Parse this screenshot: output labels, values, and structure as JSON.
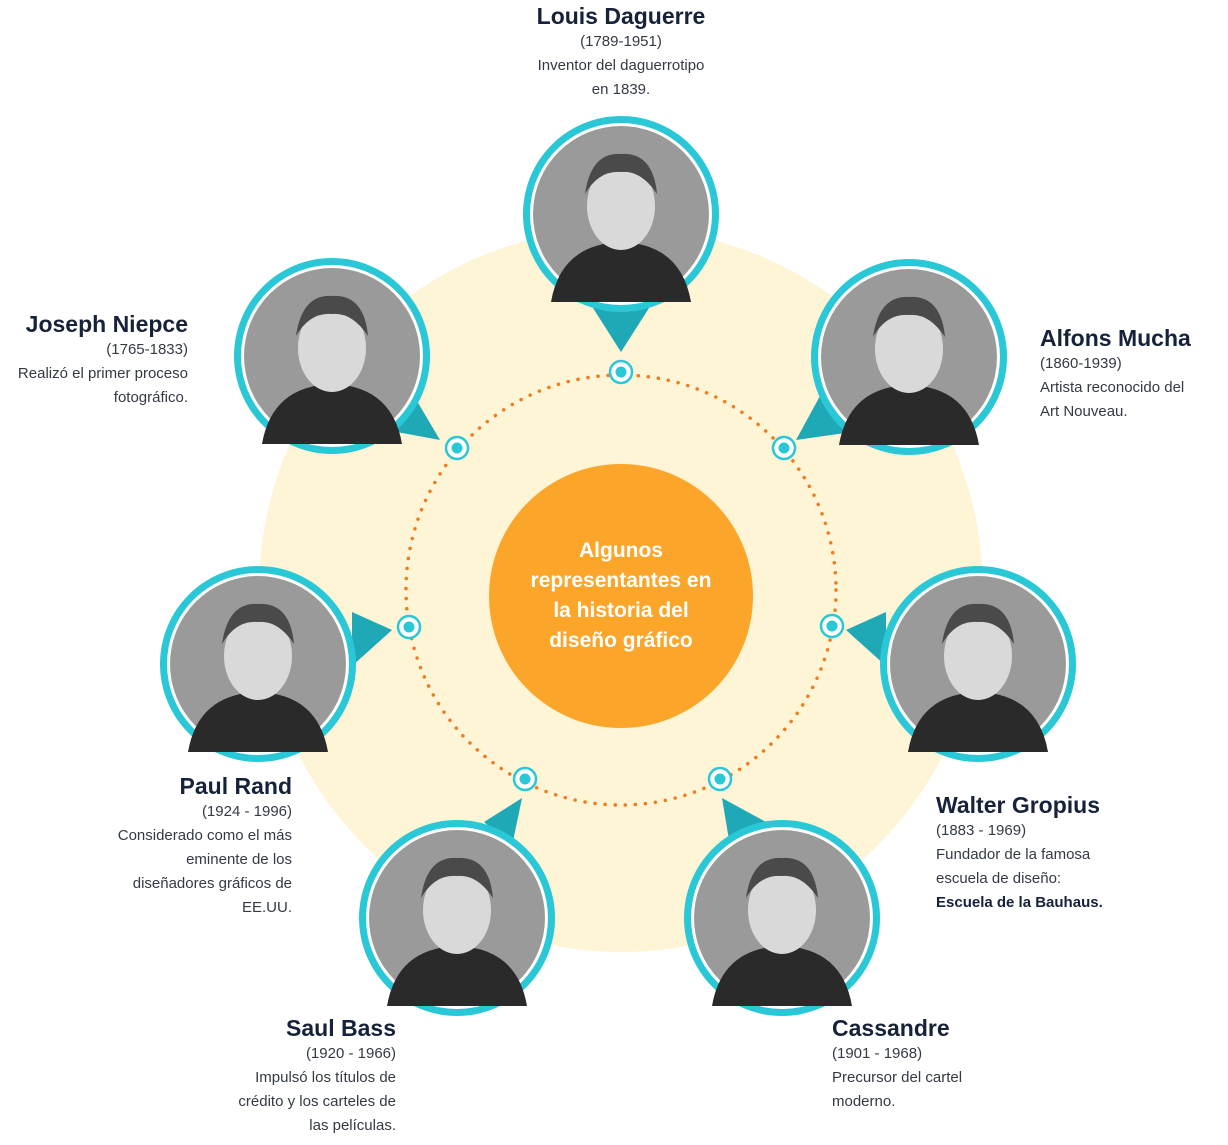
{
  "center": {
    "title": "Algunos representantes en la historia del diseño gráfico"
  },
  "colors": {
    "ring": "#2ac7d6",
    "pointer": "#1fa8b5",
    "halo": "#fdf5d6",
    "dots": "#f07b1f",
    "center": "#fba62a",
    "text_dark": "#16213a"
  },
  "people": [
    {
      "id": "daguerre",
      "name": "Louis Daguerre",
      "years": "(1789-1951)",
      "desc": [
        "Inventor del daguerrotipo",
        "en 1839."
      ],
      "portrait": "portrait-louis-daguerre"
    },
    {
      "id": "mucha",
      "name": "Alfons Mucha",
      "years": "(1860-1939)",
      "desc": [
        "Artista reconocido del",
        "Art Nouveau."
      ],
      "portrait": "portrait-alfons-mucha"
    },
    {
      "id": "gropius",
      "name": "Walter Gropius",
      "years": "(1883 - 1969)",
      "desc": [
        "Fundador de la famosa",
        "escuela de diseño:"
      ],
      "desc_bold": "Escuela de la Bauhaus.",
      "portrait": "portrait-walter-gropius"
    },
    {
      "id": "cassandre",
      "name": "Cassandre",
      "years": "(1901 - 1968)",
      "desc": [
        "Precursor del cartel",
        "moderno."
      ],
      "portrait": "portrait-cassandre"
    },
    {
      "id": "bass",
      "name": "Saul Bass",
      "years": "(1920 - 1966)",
      "desc": [
        "Impulsó los títulos de",
        "crédito y los carteles de",
        "las películas."
      ],
      "portrait": "portrait-saul-bass"
    },
    {
      "id": "rand",
      "name": "Paul Rand",
      "years": "(1924 - 1996)",
      "desc": [
        "Considerado como el más",
        "eminente de los",
        "diseñadores gráficos de",
        "EE.UU."
      ],
      "portrait": "portrait-paul-rand"
    },
    {
      "id": "niepce",
      "name": "Joseph Niepce",
      "years": "(1765-1833)",
      "desc": [
        "Realizó el primer proceso",
        "fotográfico."
      ],
      "portrait": "portrait-joseph-niepce"
    }
  ]
}
